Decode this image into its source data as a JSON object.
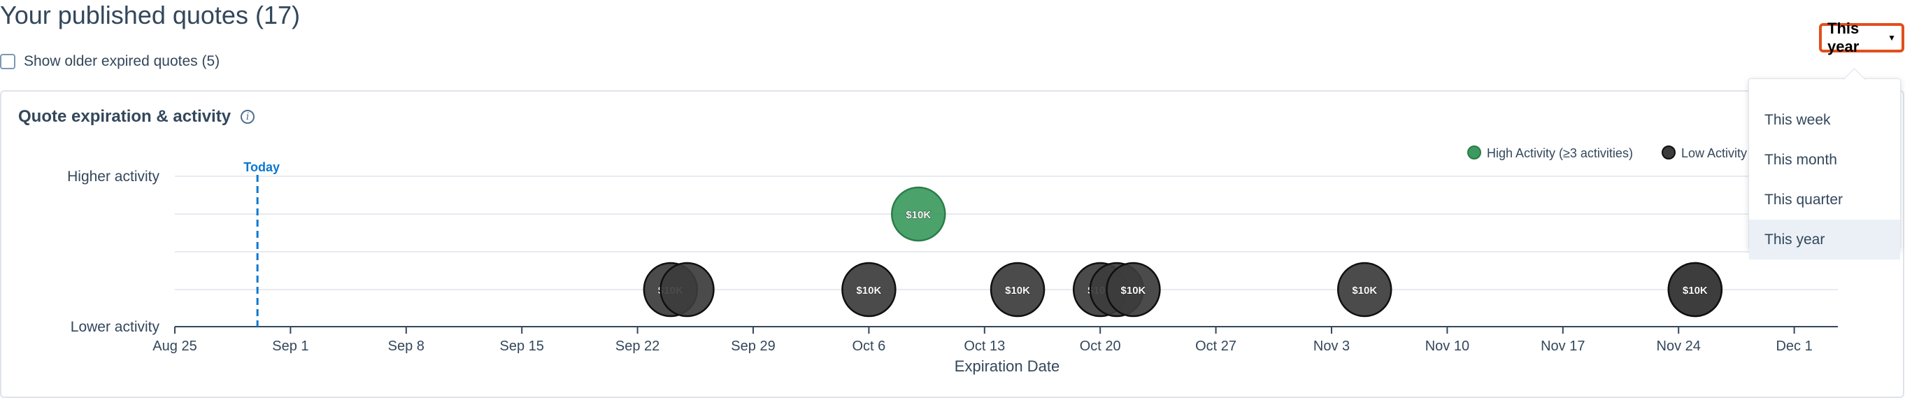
{
  "page": {
    "title": "Your published quotes (17)",
    "show_older_label": "Show older expired quotes (5)",
    "show_older_checked": false
  },
  "card": {
    "title": "Quote expiration & activity",
    "info_icon": "info-icon"
  },
  "range_filter": {
    "selected": "This year",
    "caret_icon": "caret-down-icon",
    "options": [
      "This week",
      "This month",
      "This quarter",
      "This year"
    ]
  },
  "colors": {
    "high": "#3d9a5e",
    "high_stroke": "#2b7c48",
    "low": "#3c3c3c",
    "low_stroke": "#0f0f0f",
    "today": "#0b78d0",
    "accent": "#e0501c"
  },
  "chart_data": {
    "type": "scatter",
    "xlabel": "Expiration Date",
    "ylabel_top": "Higher activity",
    "ylabel_bottom": "Lower activity",
    "today_label": "Today",
    "today_date": "2024-08-30",
    "x_range": [
      "2024-08-25",
      "2024-12-02"
    ],
    "x_ticks": [
      {
        "date": "2024-08-25",
        "label": "Aug 25"
      },
      {
        "date": "2024-09-01",
        "label": "Sep 1"
      },
      {
        "date": "2024-09-08",
        "label": "Sep 8"
      },
      {
        "date": "2024-09-15",
        "label": "Sep 15"
      },
      {
        "date": "2024-09-22",
        "label": "Sep 22"
      },
      {
        "date": "2024-09-29",
        "label": "Sep 29"
      },
      {
        "date": "2024-10-06",
        "label": "Oct 6"
      },
      {
        "date": "2024-10-13",
        "label": "Oct 13"
      },
      {
        "date": "2024-10-20",
        "label": "Oct 20"
      },
      {
        "date": "2024-10-27",
        "label": "Oct 27"
      },
      {
        "date": "2024-11-03",
        "label": "Nov 3"
      },
      {
        "date": "2024-11-10",
        "label": "Nov 10"
      },
      {
        "date": "2024-11-17",
        "label": "Nov 17"
      },
      {
        "date": "2024-11-24",
        "label": "Nov 24"
      },
      {
        "date": "2024-12-01",
        "label": "Dec 1"
      }
    ],
    "legend": [
      {
        "name": "High Activity (≥3 activities)",
        "color": "#3d9a5e"
      },
      {
        "name": "Low Activity",
        "color": "#3c3c3c"
      }
    ],
    "points": [
      {
        "date": "2024-09-24",
        "activity": "low",
        "label": "$10K"
      },
      {
        "date": "2024-09-25",
        "activity": "low",
        "label": ""
      },
      {
        "date": "2024-10-06",
        "activity": "low",
        "label": "$10K"
      },
      {
        "date": "2024-10-09",
        "activity": "high",
        "label": "$10K"
      },
      {
        "date": "2024-10-15",
        "activity": "low",
        "label": "$10K"
      },
      {
        "date": "2024-10-20",
        "activity": "low",
        "label": "$10K"
      },
      {
        "date": "2024-10-21",
        "activity": "low",
        "label": ""
      },
      {
        "date": "2024-10-22",
        "activity": "low",
        "label": "$10K"
      },
      {
        "date": "2024-11-05",
        "activity": "low",
        "label": "$10K"
      },
      {
        "date": "2024-11-25",
        "activity": "low",
        "label": ""
      },
      {
        "date": "2024-11-25",
        "activity": "low",
        "label": "$10K"
      }
    ]
  }
}
